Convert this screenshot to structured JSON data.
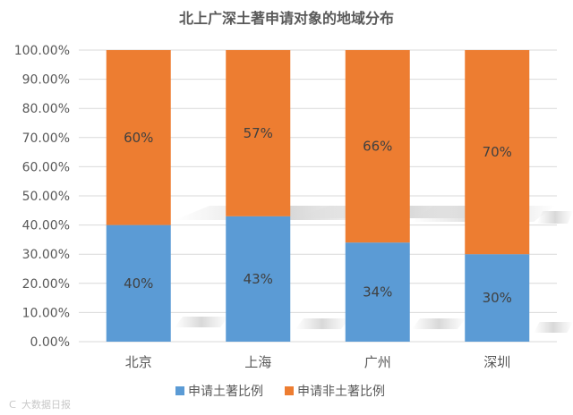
{
  "chart_data": {
    "type": "bar",
    "stacked": true,
    "title": "北上广深土著申请对象的地域分布",
    "categories": [
      "北京",
      "上海",
      "广州",
      "深圳"
    ],
    "series": [
      {
        "name": "申请土著比例",
        "values": [
          0.4,
          0.43,
          0.34,
          0.3
        ],
        "labels": [
          "40%",
          "43%",
          "34%",
          "30%"
        ]
      },
      {
        "name": "申请非土著比例",
        "values": [
          0.6,
          0.57,
          0.66,
          0.7
        ],
        "labels": [
          "60%",
          "57%",
          "66%",
          "70%"
        ]
      }
    ],
    "ylim": [
      0,
      1
    ],
    "yticks": [
      0,
      0.1,
      0.2,
      0.3,
      0.4,
      0.5,
      0.6,
      0.7,
      0.8,
      0.9,
      1.0
    ],
    "ytick_labels": [
      "0.00%",
      "10.00%",
      "20.00%",
      "30.00%",
      "40.00%",
      "50.00%",
      "60.00%",
      "70.00%",
      "80.00%",
      "90.00%",
      "100.00%"
    ],
    "grid": true,
    "legend": "bottom",
    "xlabel": "",
    "ylabel": ""
  },
  "colors": {
    "series": [
      "#5b9bd5",
      "#ed7d31"
    ],
    "grid": "#d9d9d9",
    "text": "#595959"
  },
  "watermark": "大数据日报"
}
